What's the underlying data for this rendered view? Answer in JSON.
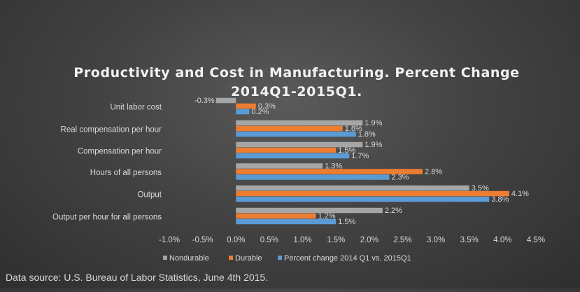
{
  "chart_data": {
    "type": "bar",
    "orientation": "horizontal",
    "title_lines": [
      "Productivity and Cost in Manufacturing. Percent Change",
      "2014Q1-2015Q1."
    ],
    "categories": [
      "Unit labor cost",
      "Real compensation per hour",
      "Compensation per hour",
      "Hours of all persons",
      "Output",
      "Output per hour for all persons"
    ],
    "series": [
      {
        "name": "Nondurable",
        "color": "#a6a6a6",
        "values": [
          -0.3,
          1.9,
          1.9,
          1.3,
          3.5,
          2.2
        ]
      },
      {
        "name": "Durable",
        "color": "#ed7d31",
        "values": [
          0.3,
          1.6,
          1.5,
          2.8,
          4.1,
          1.2
        ]
      },
      {
        "name": "Percent change 2014 Q1 vs. 2015Q1",
        "color": "#5b9bd5",
        "values": [
          0.2,
          1.8,
          1.7,
          2.3,
          3.8,
          1.5
        ]
      }
    ],
    "xlim": [
      -1.0,
      4.5
    ],
    "x_ticks": [
      "-1.0%",
      "-0.5%",
      "0.0%",
      "0.5%",
      "1.0%",
      "1.5%",
      "2.0%",
      "2.5%",
      "3.0%",
      "3.5%",
      "4.0%",
      "4.5%"
    ],
    "data_labels": [
      [
        "-0.3%",
        "1.9%",
        "1.9%",
        "1.3%",
        "3.5%",
        "2.2%"
      ],
      [
        "0.3%",
        "1.6%",
        "1.5%",
        "2.8%",
        "4.1%",
        "1.2%"
      ],
      [
        "0.2%",
        "1.8%",
        "1.7%",
        "2.3%",
        "3.8%",
        "1.5%"
      ]
    ],
    "grid": false,
    "legend_position": "bottom"
  },
  "source_note": "Data source: U.S. Bureau of Labor Statistics, June 4th 2015."
}
